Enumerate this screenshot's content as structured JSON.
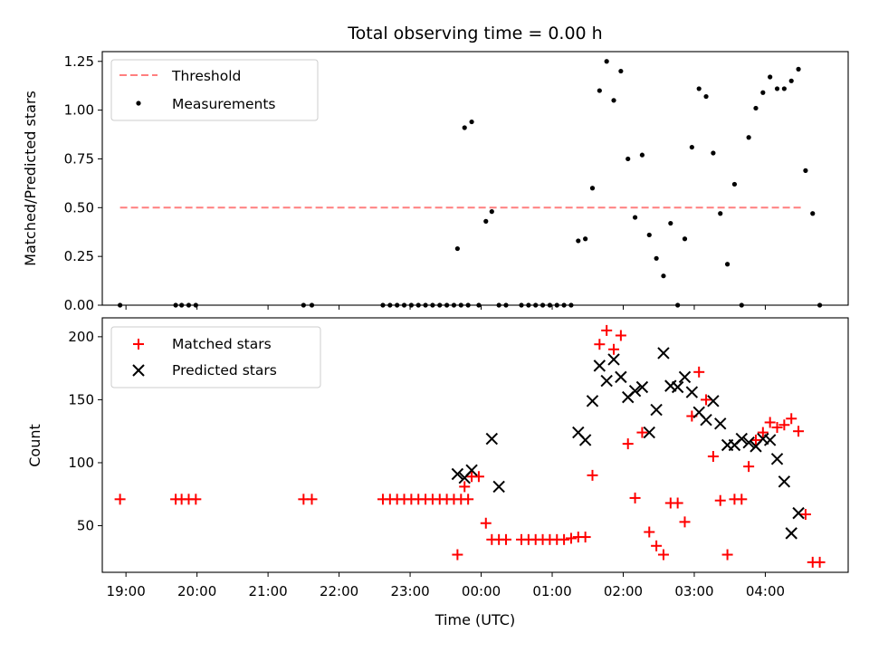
{
  "chart_data": [
    {
      "type": "scatter",
      "title": "Total observing time = 0.00 h",
      "ylabel": "Matched/Predicted stars",
      "xlim": [
        "18:40",
        "05:10"
      ],
      "ylim": [
        0,
        1.3
      ],
      "yticks": [
        "0.00",
        "0.25",
        "0.50",
        "0.75",
        "1.00",
        "1.25"
      ],
      "legend_position": "top-left",
      "grid": false,
      "series": [
        {
          "name": "Threshold",
          "kind": "dashed-line",
          "color": "#ff7f7f",
          "x": [
            "18:55",
            "04:30"
          ],
          "y": [
            0.5,
            0.5
          ]
        },
        {
          "name": "Measurements",
          "kind": "scatter",
          "color": "#000000",
          "x": [
            "18:55",
            "19:42",
            "19:47",
            "19:53",
            "19:59",
            "21:30",
            "21:37",
            "22:37",
            "22:43",
            "22:49",
            "22:55",
            "23:01",
            "23:07",
            "23:13",
            "23:19",
            "23:25",
            "23:31",
            "23:37",
            "23:43",
            "23:49",
            "23:40",
            "23:46",
            "23:52",
            "23:58",
            "00:04",
            "00:09",
            "00:15",
            "00:21",
            "00:34",
            "00:40",
            "00:46",
            "00:52",
            "00:58",
            "01:04",
            "01:10",
            "01:16",
            "01:22",
            "01:28",
            "01:34",
            "01:40",
            "01:46",
            "01:52",
            "01:58",
            "02:04",
            "02:10",
            "02:16",
            "02:22",
            "02:28",
            "02:34",
            "02:40",
            "02:46",
            "02:52",
            "02:58",
            "03:04",
            "03:10",
            "03:16",
            "03:22",
            "03:28",
            "03:34",
            "03:40",
            "03:46",
            "03:52",
            "03:58",
            "04:04",
            "04:10",
            "04:16",
            "04:22",
            "04:28",
            "04:34",
            "04:40",
            "04:46"
          ],
          "y": [
            0,
            0,
            0,
            0,
            0,
            0,
            0,
            0,
            0,
            0,
            0,
            0,
            0,
            0,
            0,
            0,
            0,
            0,
            0,
            0,
            0.29,
            0.91,
            0.94,
            0,
            0.43,
            0.48,
            0,
            0,
            0,
            0,
            0,
            0,
            0,
            0,
            0,
            0,
            0.33,
            0.34,
            0.6,
            1.1,
            1.25,
            1.05,
            1.2,
            0.75,
            0.45,
            0.77,
            0.36,
            0.24,
            0.15,
            0.42,
            0,
            0.34,
            0.81,
            1.11,
            1.07,
            0.78,
            0.47,
            0.21,
            0.62,
            0,
            0.86,
            1.01,
            1.09,
            1.17,
            1.11,
            1.11,
            1.15,
            1.21,
            0.69,
            0.47,
            0
          ]
        }
      ]
    },
    {
      "type": "scatter",
      "xlabel": "Time (UTC)",
      "ylabel": "Count",
      "xlim": [
        "18:40",
        "05:10"
      ],
      "ylim": [
        13,
        215
      ],
      "xticks": [
        "19:00",
        "20:00",
        "21:00",
        "22:00",
        "23:00",
        "00:00",
        "01:00",
        "02:00",
        "03:00",
        "04:00"
      ],
      "yticks": [
        "50",
        "100",
        "150",
        "200"
      ],
      "legend_position": "top-left",
      "grid": false,
      "series": [
        {
          "name": "Matched stars",
          "marker": "plus",
          "color": "#ff0000",
          "x": [
            "18:55",
            "19:42",
            "19:47",
            "19:53",
            "19:59",
            "21:30",
            "21:37",
            "22:37",
            "22:43",
            "22:49",
            "22:55",
            "23:01",
            "23:07",
            "23:13",
            "23:19",
            "23:25",
            "23:31",
            "23:37",
            "23:43",
            "23:49",
            "23:40",
            "23:46",
            "23:52",
            "23:58",
            "00:04",
            "00:09",
            "00:15",
            "00:21",
            "00:34",
            "00:40",
            "00:46",
            "00:52",
            "00:58",
            "01:04",
            "01:10",
            "01:16",
            "01:22",
            "01:28",
            "01:34",
            "01:40",
            "01:46",
            "01:52",
            "01:58",
            "02:04",
            "02:10",
            "02:16",
            "02:22",
            "02:28",
            "02:34",
            "02:40",
            "02:46",
            "02:52",
            "02:58",
            "03:04",
            "03:10",
            "03:16",
            "03:22",
            "03:28",
            "03:34",
            "03:40",
            "03:46",
            "03:52",
            "03:58",
            "04:04",
            "04:10",
            "04:16",
            "04:22",
            "04:28",
            "04:34",
            "04:40",
            "04:46"
          ],
          "y": [
            71,
            71,
            71,
            71,
            71,
            71,
            71,
            71,
            71,
            71,
            71,
            71,
            71,
            71,
            71,
            71,
            71,
            71,
            71,
            71,
            27,
            81,
            89,
            89,
            52,
            39,
            39,
            39,
            39,
            39,
            39,
            39,
            39,
            39,
            39,
            40,
            41,
            41,
            90,
            194,
            205,
            190,
            201,
            115,
            72,
            124,
            45,
            34,
            27,
            68,
            68,
            53,
            137,
            172,
            150,
            105,
            70,
            27,
            71,
            71,
            97,
            118,
            124,
            132,
            128,
            130,
            135,
            125,
            59,
            21,
            21
          ]
        },
        {
          "name": "Predicted stars",
          "marker": "x",
          "color": "#000000",
          "x": [
            "23:40",
            "23:46",
            "23:52",
            "00:09",
            "00:15",
            "01:22",
            "01:28",
            "01:34",
            "01:40",
            "01:46",
            "01:52",
            "01:58",
            "02:04",
            "02:10",
            "02:16",
            "02:22",
            "02:28",
            "02:34",
            "02:40",
            "02:46",
            "02:52",
            "02:58",
            "03:04",
            "03:10",
            "03:16",
            "03:22",
            "03:28",
            "03:34",
            "03:40",
            "03:46",
            "03:52",
            "03:58",
            "04:04",
            "04:10",
            "04:16",
            "04:22",
            "04:28"
          ],
          "y": [
            91,
            88,
            94,
            119,
            81,
            124,
            118,
            149,
            177,
            165,
            182,
            168,
            152,
            157,
            160,
            124,
            142,
            187,
            161,
            160,
            168,
            156,
            140,
            134,
            149,
            131,
            114,
            114,
            119,
            116,
            113,
            119,
            118,
            103,
            85,
            44,
            60
          ]
        }
      ]
    }
  ]
}
